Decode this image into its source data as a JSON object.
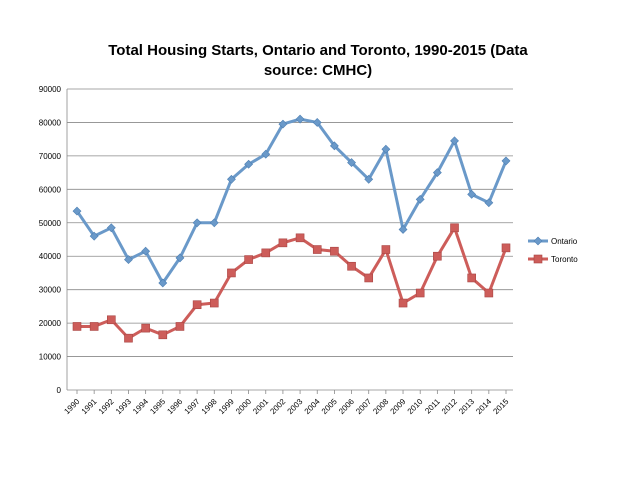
{
  "chart_data": {
    "type": "line",
    "title": "Total Housing Starts, Ontario and Toronto, 1990-2015 (Data source: CMHC)",
    "title_lines": [
      "Total Housing Starts, Ontario and Toronto, 1990-2015 (Data",
      "source: CMHC)"
    ],
    "xlabel": "",
    "ylabel": "",
    "categories": [
      "1990",
      "1991",
      "1992",
      "1993",
      "1994",
      "1995",
      "1996",
      "1997",
      "1998",
      "1999",
      "2000",
      "2001",
      "2002",
      "2003",
      "2004",
      "2005",
      "2006",
      "2007",
      "2008",
      "2009",
      "2010",
      "2011",
      "2012",
      "2013",
      "2014",
      "2015"
    ],
    "ylim": [
      0,
      90000
    ],
    "yticks": [
      "0",
      "10000",
      "20000",
      "30000",
      "40000",
      "50000",
      "60000",
      "70000",
      "80000",
      "90000"
    ],
    "grid": true,
    "legend_position": "right",
    "series": [
      {
        "name": "Ontario",
        "color": "#6a99c9",
        "marker": "diamond",
        "values": [
          53500,
          46000,
          48500,
          39000,
          41500,
          32000,
          39500,
          50000,
          50000,
          63000,
          67500,
          70500,
          79500,
          81000,
          80000,
          73000,
          68000,
          63000,
          72000,
          48000,
          57000,
          65000,
          74500,
          58500,
          56000,
          68500
        ]
      },
      {
        "name": "Toronto",
        "color": "#cd5d5a",
        "marker": "square",
        "values": [
          19000,
          19000,
          21000,
          15500,
          18500,
          16500,
          19000,
          25500,
          26000,
          35000,
          39000,
          41000,
          44000,
          45500,
          42000,
          41500,
          37000,
          33500,
          42000,
          26000,
          29000,
          40000,
          48500,
          33500,
          29000,
          42500
        ]
      }
    ]
  }
}
